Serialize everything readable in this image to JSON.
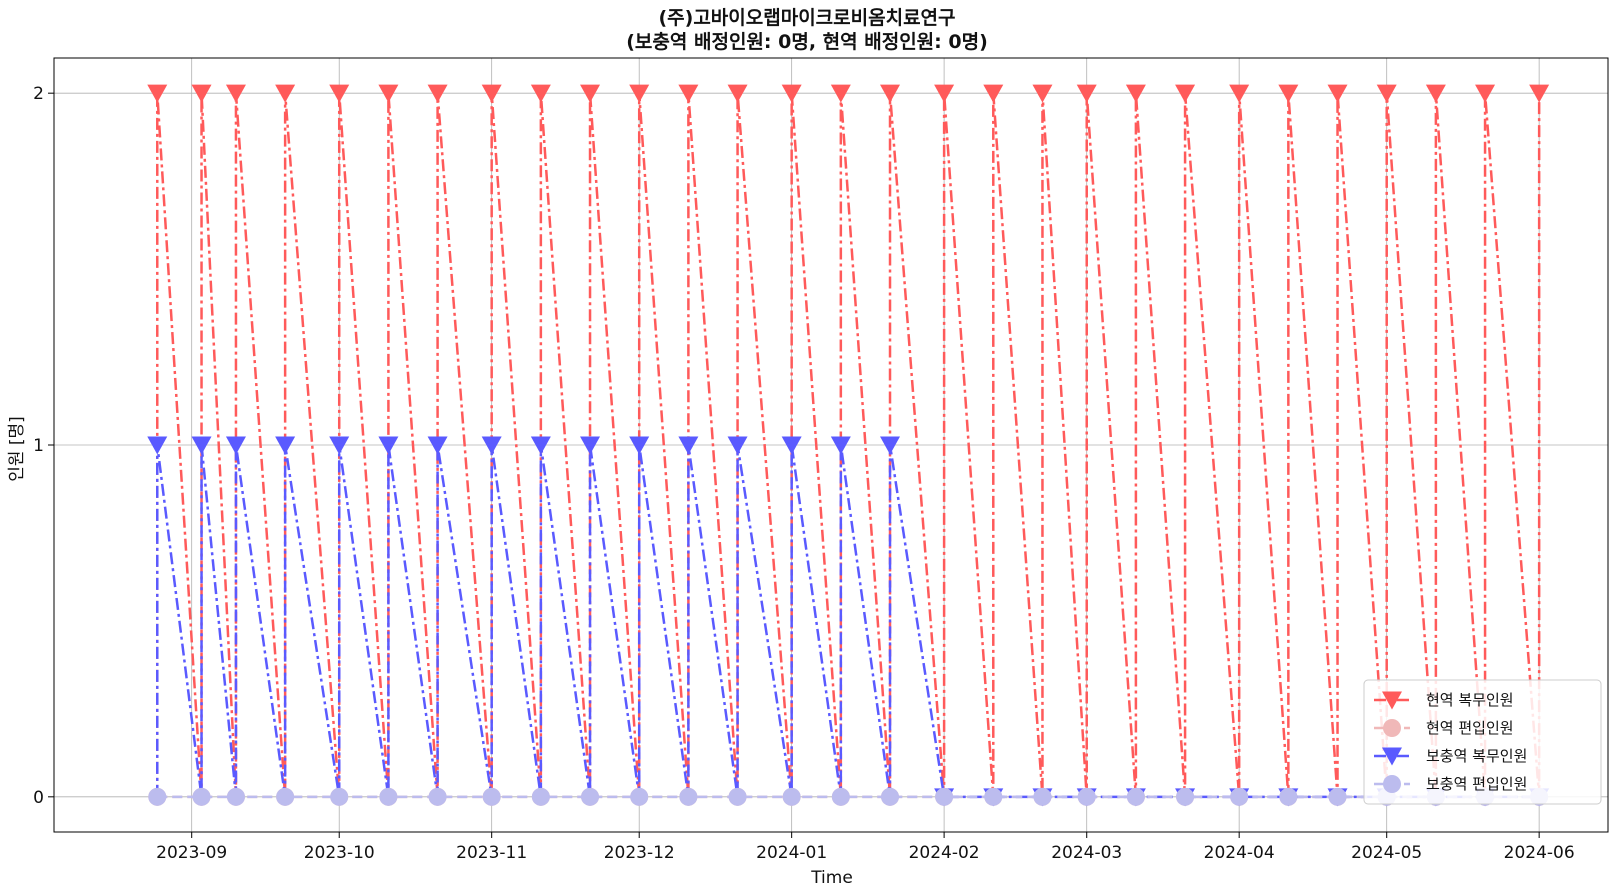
{
  "chart_data": {
    "type": "line",
    "title_line1": "(주)고바이오랩마이크로비옴치료연구",
    "title_line2": "(보충역   배정인원:   0명,   현역   배정인원:   0명)",
    "xlabel": "Time",
    "ylabel": "인원 [명]",
    "x_ticks": [
      "2023-09-01",
      "2023-10-01",
      "2023-11-01",
      "2023-12-01",
      "2024-01-01",
      "2024-02-01",
      "2024-03-01",
      "2024-04-01",
      "2024-05-01",
      "2024-06-01"
    ],
    "x_tick_labels": [
      "2023-09",
      "2023-10",
      "2023-11",
      "2023-12",
      "2024-01",
      "2024-02",
      "2024-03",
      "2024-04",
      "2024-05",
      "2024-06"
    ],
    "xlim": [
      "2023-08-04",
      "2024-06-15"
    ],
    "y_ticks": [
      0,
      1,
      2
    ],
    "y_tick_labels": [
      "0",
      "1",
      "2"
    ],
    "ylim": [
      -0.1,
      2.1
    ],
    "grid": true,
    "legend_position": "bottom-right",
    "x": [
      "2023-08-25",
      "2023-09-03",
      "2023-09-10",
      "2023-09-20",
      "2023-10-01",
      "2023-10-11",
      "2023-10-21",
      "2023-11-01",
      "2023-11-11",
      "2023-11-21",
      "2023-12-01",
      "2023-12-11",
      "2023-12-21",
      "2024-01-01",
      "2024-01-11",
      "2024-01-21",
      "2024-02-01",
      "2024-02-11",
      "2024-02-21",
      "2024-03-01",
      "2024-03-11",
      "2024-03-21",
      "2024-04-01",
      "2024-04-11",
      "2024-04-21",
      "2024-05-01",
      "2024-05-11",
      "2024-05-21",
      "2024-06-01"
    ],
    "series": [
      {
        "name": "현역   복무인원",
        "color": "#ff5a5a",
        "marker": "triangle-down",
        "line_style": "dash-dot",
        "values": [
          2,
          2,
          2,
          2,
          2,
          2,
          2,
          2,
          2,
          2,
          2,
          2,
          2,
          2,
          2,
          2,
          2,
          2,
          2,
          2,
          2,
          2,
          2,
          2,
          2,
          2,
          2,
          2,
          2
        ]
      },
      {
        "name": "현역   편입인원",
        "color": "#f0b8b8",
        "marker": "circle",
        "line_style": "dashed",
        "values": [
          0,
          0,
          0,
          0,
          0,
          0,
          0,
          0,
          0,
          0,
          0,
          0,
          0,
          0,
          0,
          0,
          0,
          0,
          0,
          0,
          0,
          0,
          0,
          0,
          0,
          0,
          0,
          0,
          0
        ]
      },
      {
        "name": "보충역   복무인원",
        "color": "#5a5aff",
        "marker": "triangle-down",
        "line_style": "dash-dot",
        "values": [
          1,
          1,
          1,
          1,
          1,
          1,
          1,
          1,
          1,
          1,
          1,
          1,
          1,
          1,
          1,
          1,
          0,
          0,
          0,
          0,
          0,
          0,
          0,
          0,
          0,
          0,
          0,
          0,
          0
        ]
      },
      {
        "name": "보충역   편입인원",
        "color": "#bcbcee",
        "marker": "circle",
        "line_style": "dashed",
        "values": [
          0,
          0,
          0,
          0,
          0,
          0,
          0,
          0,
          0,
          0,
          0,
          0,
          0,
          0,
          0,
          0,
          0,
          0,
          0,
          0,
          0,
          0,
          0,
          0,
          0,
          0,
          0,
          0,
          0
        ]
      }
    ]
  }
}
